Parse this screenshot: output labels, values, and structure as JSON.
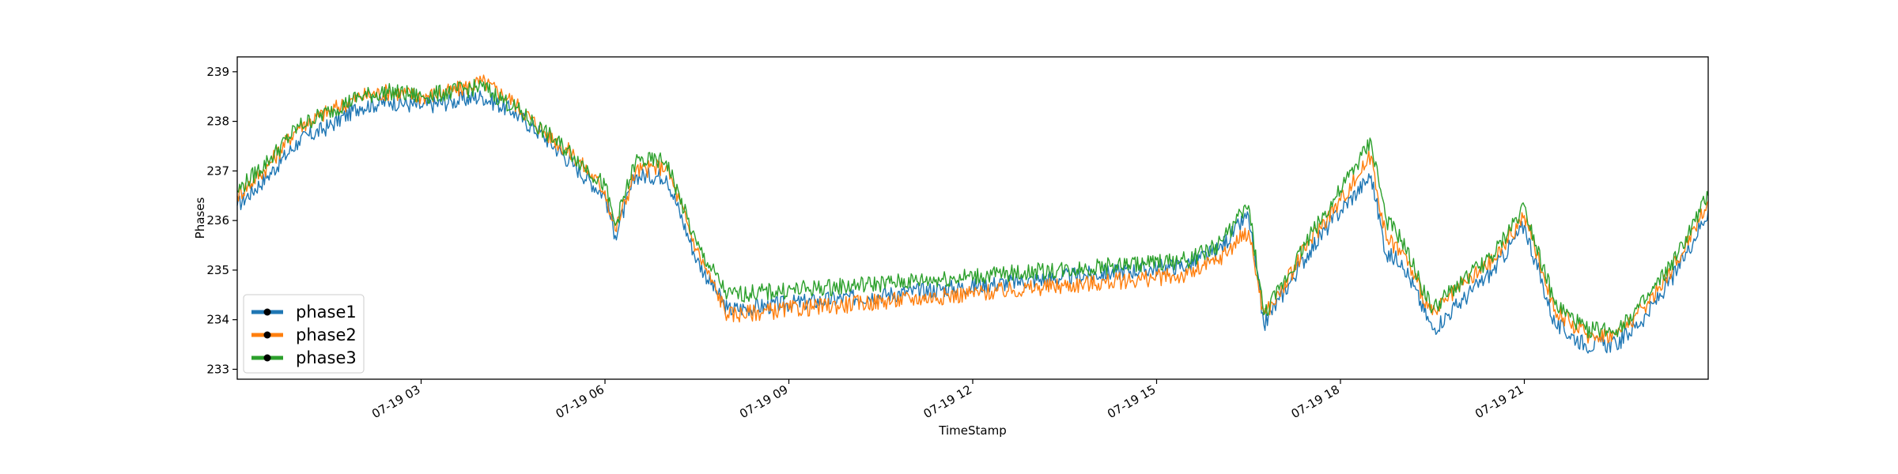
{
  "chart_data": {
    "type": "line",
    "xlabel": "TimeStamp",
    "ylabel": "Phases",
    "xlim": [
      "07-19 00:00",
      "07-19 24:00"
    ],
    "ylim": [
      232.8,
      239.3
    ],
    "x_ticks": [
      "07-19 03",
      "07-19 06",
      "07-19 09",
      "07-19 12",
      "07-19 15",
      "07-19 18",
      "07-19 21"
    ],
    "y_ticks": [
      "233",
      "234",
      "235",
      "236",
      "237",
      "238",
      "239"
    ],
    "legend_position": "lower-left",
    "grid": false,
    "series": [
      {
        "name": "phase1",
        "color": "#1f77b4",
        "x": [
          "07-19 00:00",
          "07-19 00:30",
          "07-19 01:00",
          "07-19 01:30",
          "07-19 02:00",
          "07-19 02:30",
          "07-19 03:00",
          "07-19 03:30",
          "07-19 04:00",
          "07-19 04:30",
          "07-19 05:00",
          "07-19 05:30",
          "07-19 06:00",
          "07-19 06:10",
          "07-19 06:30",
          "07-19 07:00",
          "07-19 07:30",
          "07-19 08:00",
          "07-19 15:30",
          "07-19 16:00",
          "07-19 16:30",
          "07-19 16:45",
          "07-19 17:00",
          "07-19 17:30",
          "07-19 18:00",
          "07-19 18:30",
          "07-19 18:45",
          "07-19 19:00",
          "07-19 19:30",
          "07-19 20:00",
          "07-19 20:30",
          "07-19 21:00",
          "07-19 21:30",
          "07-19 22:00",
          "07-19 22:30",
          "07-19 23:00",
          "07-19 23:30",
          "07-19 24:00"
        ],
        "values": [
          236.3,
          236.9,
          237.6,
          237.9,
          238.3,
          238.4,
          238.3,
          238.4,
          238.5,
          238.2,
          237.7,
          237.1,
          236.5,
          235.7,
          236.9,
          236.9,
          235.2,
          234.2,
          235.1,
          235.4,
          236.1,
          233.9,
          234.4,
          235.4,
          236.2,
          236.9,
          235.3,
          235.2,
          233.8,
          234.4,
          235.0,
          235.9,
          233.9,
          233.5,
          233.5,
          234.1,
          235.0,
          236.2
        ]
      },
      {
        "name": "phase2",
        "color": "#ff7f0e",
        "x": [
          "07-19 00:00",
          "07-19 00:30",
          "07-19 01:00",
          "07-19 01:30",
          "07-19 02:00",
          "07-19 02:30",
          "07-19 03:00",
          "07-19 03:30",
          "07-19 04:00",
          "07-19 04:30",
          "07-19 05:00",
          "07-19 05:30",
          "07-19 06:00",
          "07-19 06:10",
          "07-19 06:30",
          "07-19 07:00",
          "07-19 07:30",
          "07-19 08:00",
          "07-19 15:30",
          "07-19 16:00",
          "07-19 16:30",
          "07-19 16:45",
          "07-19 17:00",
          "07-19 17:30",
          "07-19 18:00",
          "07-19 18:30",
          "07-19 18:45",
          "07-19 19:00",
          "07-19 19:30",
          "07-19 20:00",
          "07-19 20:30",
          "07-19 21:00",
          "07-19 21:30",
          "07-19 22:00",
          "07-19 22:30",
          "07-19 23:00",
          "07-19 23:30",
          "07-19 24:00"
        ],
        "values": [
          236.5,
          237.1,
          237.9,
          238.2,
          238.5,
          238.6,
          238.5,
          238.6,
          238.8,
          238.4,
          237.8,
          237.3,
          236.6,
          235.8,
          237.0,
          237.1,
          235.4,
          234.1,
          234.9,
          235.2,
          235.8,
          234.1,
          234.5,
          235.6,
          236.4,
          237.3,
          235.6,
          235.4,
          234.1,
          234.7,
          235.2,
          236.1,
          234.2,
          233.7,
          233.7,
          234.3,
          235.2,
          236.4
        ]
      },
      {
        "name": "phase3",
        "color": "#2ca02c",
        "x": [
          "07-19 00:00",
          "07-19 00:30",
          "07-19 01:00",
          "07-19 01:30",
          "07-19 02:00",
          "07-19 02:30",
          "07-19 03:00",
          "07-19 03:30",
          "07-19 04:00",
          "07-19 04:30",
          "07-19 05:00",
          "07-19 05:30",
          "07-19 06:00",
          "07-19 06:10",
          "07-19 06:30",
          "07-19 07:00",
          "07-19 07:30",
          "07-19 08:00",
          "07-19 15:30",
          "07-19 16:00",
          "07-19 16:30",
          "07-19 16:45",
          "07-19 17:00",
          "07-19 17:30",
          "07-19 18:00",
          "07-19 18:30",
          "07-19 18:45",
          "07-19 19:00",
          "07-19 19:30",
          "07-19 20:00",
          "07-19 20:30",
          "07-19 21:00",
          "07-19 21:30",
          "07-19 22:00",
          "07-19 22:30",
          "07-19 23:00",
          "07-19 23:30",
          "07-19 24:00"
        ],
        "values": [
          236.6,
          237.2,
          237.9,
          238.2,
          238.5,
          238.6,
          238.5,
          238.6,
          238.7,
          238.3,
          237.8,
          237.3,
          236.7,
          235.9,
          237.2,
          237.2,
          235.5,
          234.5,
          235.2,
          235.5,
          236.3,
          234.1,
          234.6,
          235.7,
          236.6,
          237.6,
          236.0,
          235.6,
          234.2,
          234.8,
          235.3,
          236.3,
          234.3,
          233.8,
          233.8,
          234.4,
          235.3,
          236.5
        ]
      }
    ]
  }
}
